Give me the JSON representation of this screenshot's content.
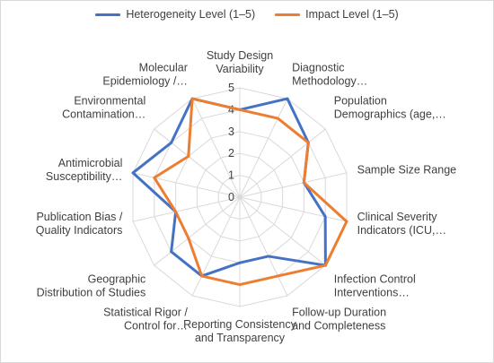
{
  "chart_data": {
    "type": "radar",
    "title": "",
    "categories": [
      [
        "Study Design",
        "Variability"
      ],
      [
        "Diagnostic",
        "Methodology…"
      ],
      [
        "Population",
        "Demographics (age,…"
      ],
      [
        "Sample Size Range"
      ],
      [
        "Clinical Severity",
        "Indicators (ICU,…"
      ],
      [
        "Infection Control",
        "Interventions…"
      ],
      [
        "Follow-up Duration",
        "and Completeness"
      ],
      [
        "Reporting Consistency",
        "and Transparency"
      ],
      [
        "Statistical Rigor /",
        "Control for…"
      ],
      [
        "Geographic",
        "Distribution of Studies"
      ],
      [
        "Publication Bias /",
        "Quality Indicators"
      ],
      [
        "Antimicrobial",
        "Susceptibility…"
      ],
      [
        "Environmental",
        "Contamination…"
      ],
      [
        "Molecular",
        "Epidemiology /…"
      ]
    ],
    "rlim": [
      0,
      5
    ],
    "ticks": [
      "0",
      "1",
      "2",
      "3",
      "4",
      "5"
    ],
    "series": [
      {
        "name": "Heterogeneity Level (1–5)",
        "color": "#4472C4",
        "values": [
          4,
          5,
          4,
          3,
          4,
          5,
          3,
          3,
          4,
          4,
          3,
          5,
          4,
          5
        ]
      },
      {
        "name": "Impact Level (1–5)",
        "color": "#ED7D31",
        "values": [
          4,
          4,
          4,
          3,
          5,
          5,
          4,
          4,
          4,
          3,
          3,
          4,
          3,
          5
        ]
      }
    ]
  }
}
